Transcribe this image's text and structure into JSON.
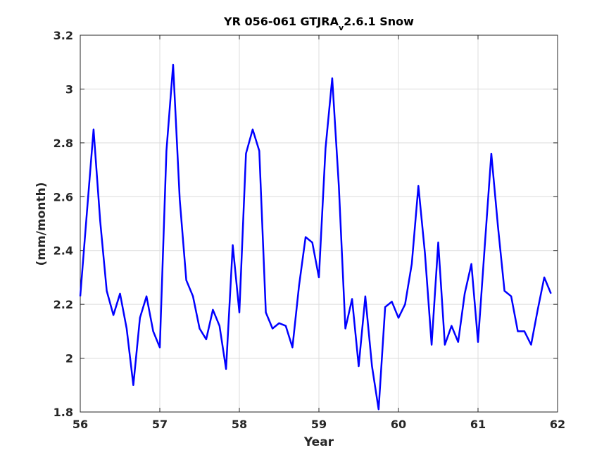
{
  "chart_data": {
    "type": "line",
    "title": {
      "prefix": "YR 056-061 GTJRA",
      "subscript": "v",
      "suffix": "2.6.1 Snow"
    },
    "xlabel": "Year",
    "ylabel": "(mm/month)",
    "xlim": [
      56,
      62
    ],
    "ylim": [
      1.8,
      3.2
    ],
    "xticks": [
      56,
      57,
      58,
      59,
      60,
      61,
      62
    ],
    "xtick_labels": [
      "56",
      "57",
      "58",
      "59",
      "60",
      "61",
      "62"
    ],
    "yticks": [
      1.8,
      2.0,
      2.2,
      2.4,
      2.6,
      2.8,
      3.0,
      3.2
    ],
    "ytick_labels": [
      "1.8",
      "2",
      "2.2",
      "2.4",
      "2.6",
      "2.8",
      "3",
      "3.2"
    ],
    "grid": true,
    "line_color": "#0000ff",
    "series": [
      {
        "x": [
          56.0,
          56.083,
          56.167,
          56.25,
          56.333,
          56.417,
          56.5,
          56.583,
          56.667,
          56.75,
          56.833,
          56.917,
          57.0,
          57.083,
          57.167,
          57.25,
          57.333,
          57.417,
          57.5,
          57.583,
          57.667,
          57.75,
          57.833,
          57.917,
          58.0,
          58.083,
          58.167,
          58.25,
          58.333,
          58.417,
          58.5,
          58.583,
          58.667,
          58.75,
          58.833,
          58.917,
          59.0,
          59.083,
          59.167,
          59.25,
          59.333,
          59.417,
          59.5,
          59.583,
          59.667,
          59.75,
          59.833,
          59.917,
          60.0,
          60.083,
          60.167,
          60.25,
          60.333,
          60.417,
          60.5,
          60.583,
          60.667,
          60.75,
          60.833,
          60.917,
          61.0,
          61.083,
          61.167,
          61.25,
          61.333,
          61.417,
          61.5,
          61.583,
          61.667,
          61.75,
          61.833,
          61.917
        ],
        "y": [
          2.23,
          2.54,
          2.85,
          2.51,
          2.25,
          2.16,
          2.24,
          2.11,
          1.9,
          2.15,
          2.23,
          2.1,
          2.04,
          2.77,
          3.09,
          2.59,
          2.29,
          2.23,
          2.11,
          2.07,
          2.18,
          2.12,
          1.96,
          2.42,
          2.17,
          2.76,
          2.85,
          2.77,
          2.17,
          2.11,
          2.13,
          2.12,
          2.04,
          2.27,
          2.45,
          2.43,
          2.3,
          2.78,
          3.04,
          2.64,
          2.11,
          2.22,
          1.97,
          2.23,
          1.97,
          1.81,
          2.19,
          2.21,
          2.15,
          2.2,
          2.35,
          2.64,
          2.39,
          2.05,
          2.43,
          2.05,
          2.12,
          2.06,
          2.24,
          2.35,
          2.06,
          2.41,
          2.76,
          2.49,
          2.25,
          2.23,
          2.1,
          2.1,
          2.05,
          2.18,
          2.3,
          2.24
        ]
      }
    ]
  }
}
